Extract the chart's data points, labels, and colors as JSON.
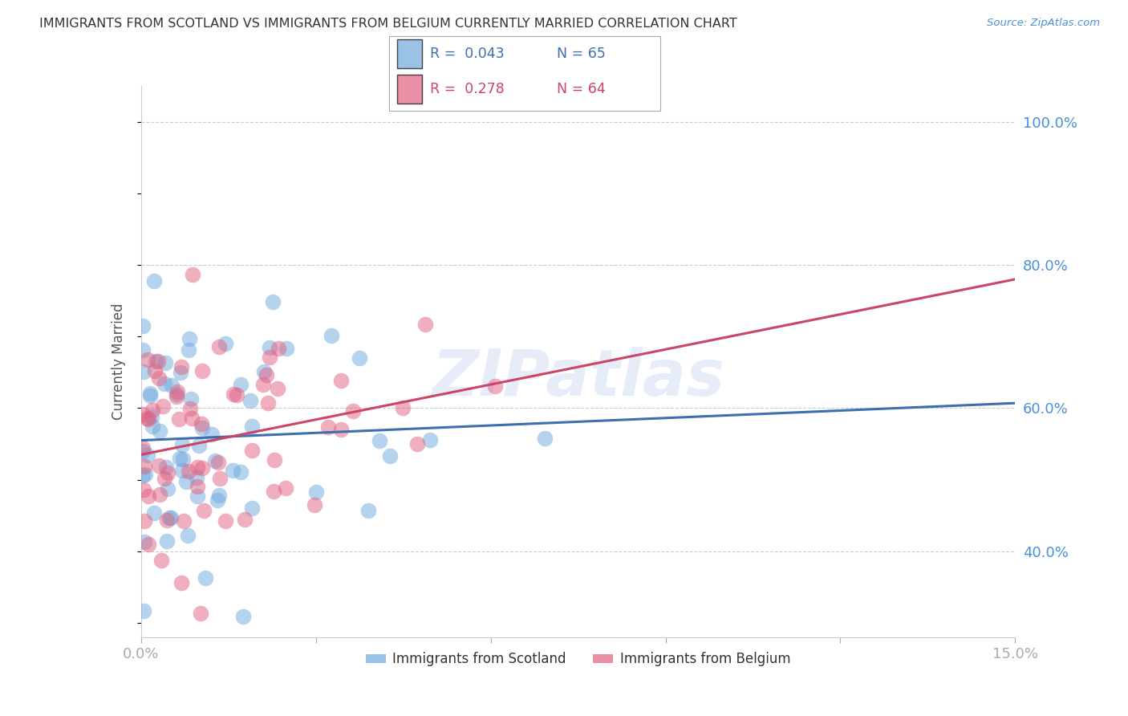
{
  "title": "IMMIGRANTS FROM SCOTLAND VS IMMIGRANTS FROM BELGIUM CURRENTLY MARRIED CORRELATION CHART",
  "source": "Source: ZipAtlas.com",
  "ylabel": "Currently Married",
  "xlim": [
    0.0,
    0.15
  ],
  "ylim": [
    0.28,
    1.05
  ],
  "scotland_R": 0.043,
  "scotland_N": 65,
  "belgium_R": 0.278,
  "belgium_N": 64,
  "scotland_color": "#6fa8dc",
  "belgium_color": "#e06080",
  "scotland_line_color": "#3c6faf",
  "belgium_line_color": "#cc4466",
  "scotland_line_y0": 0.555,
  "scotland_line_y1": 0.607,
  "belgium_line_y0": 0.535,
  "belgium_line_y1": 0.78,
  "background_color": "#ffffff",
  "grid_color": "#cccccc",
  "axis_label_color": "#4a90d9",
  "title_color": "#333333",
  "watermark_text": "ZIPatlas",
  "watermark_color": "#c8d8f0",
  "watermark_alpha": 0.45,
  "yticks": [
    0.4,
    0.6,
    0.8,
    1.0
  ],
  "ytick_labels": [
    "40.0%",
    "60.0%",
    "80.0%",
    "100.0%"
  ]
}
